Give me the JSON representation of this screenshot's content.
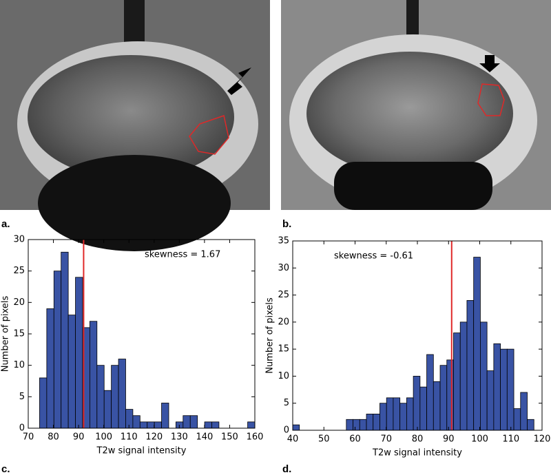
{
  "panel_labels": [
    "a.",
    "b.",
    "c.",
    "d."
  ],
  "chart_data": [
    {
      "type": "histogram",
      "xlabel": "T2w signal intensity",
      "ylabel": "Number of pixels",
      "annotation": "skewness =  1.67",
      "vline": 92,
      "vline_color": "#e02828",
      "color": "#3953a4",
      "bins": [
        74.5,
        77.35,
        80.2,
        83.05,
        85.9,
        88.75,
        91.6,
        94.45,
        97.3,
        100.15,
        103,
        105.85,
        108.7,
        111.55,
        114.4,
        117.25,
        120.1,
        122.95,
        125.8,
        128.65,
        131.5,
        134.35,
        137.2,
        140.05,
        142.9,
        145.75,
        148.6,
        151.45,
        154.3,
        157.15,
        160
      ],
      "values": [
        8,
        19,
        25,
        28,
        18,
        24,
        16,
        17,
        10,
        6,
        10,
        11,
        3,
        2,
        1,
        1,
        1,
        4,
        0,
        1,
        2,
        2,
        0,
        1,
        1,
        0,
        0,
        0,
        0,
        1
      ],
      "xlim": [
        70,
        160
      ],
      "xticks": [
        70,
        80,
        90,
        100,
        110,
        120,
        130,
        140,
        150,
        160
      ],
      "ylim": [
        0,
        30
      ],
      "yticks": [
        0,
        5,
        10,
        15,
        20,
        25,
        30
      ]
    },
    {
      "type": "histogram",
      "xlabel": "T2w signal intensity",
      "ylabel": "Number of pixels",
      "annotation": "skewness = -0.61",
      "vline": 91,
      "vline_color": "#e02828",
      "color": "#3953a4",
      "bins": [
        40,
        42.15,
        44.3,
        46.45,
        48.6,
        50.75,
        52.9,
        55.05,
        57.2,
        59.35,
        61.5,
        63.65,
        65.8,
        67.95,
        70.1,
        72.25,
        74.4,
        76.55,
        78.7,
        80.85,
        83,
        85.15,
        87.3,
        89.45,
        91.6,
        93.75,
        95.9,
        98.05,
        100.2,
        102.35,
        104.5,
        106.65,
        108.8,
        110.95,
        113.1,
        115.25,
        117.4
      ],
      "values": [
        1,
        0,
        0,
        0,
        0,
        0,
        0,
        0,
        2,
        2,
        2,
        3,
        3,
        5,
        6,
        6,
        5,
        6,
        10,
        8,
        14,
        9,
        12,
        13,
        18,
        20,
        24,
        32,
        20,
        11,
        16,
        15,
        15,
        4,
        7,
        2
      ],
      "xlim": [
        40,
        120
      ],
      "xticks": [
        40,
        50,
        60,
        70,
        80,
        90,
        100,
        110,
        120
      ],
      "ylim": [
        0,
        35
      ],
      "yticks": [
        0,
        5,
        10,
        15,
        20,
        25,
        30,
        35
      ]
    }
  ]
}
